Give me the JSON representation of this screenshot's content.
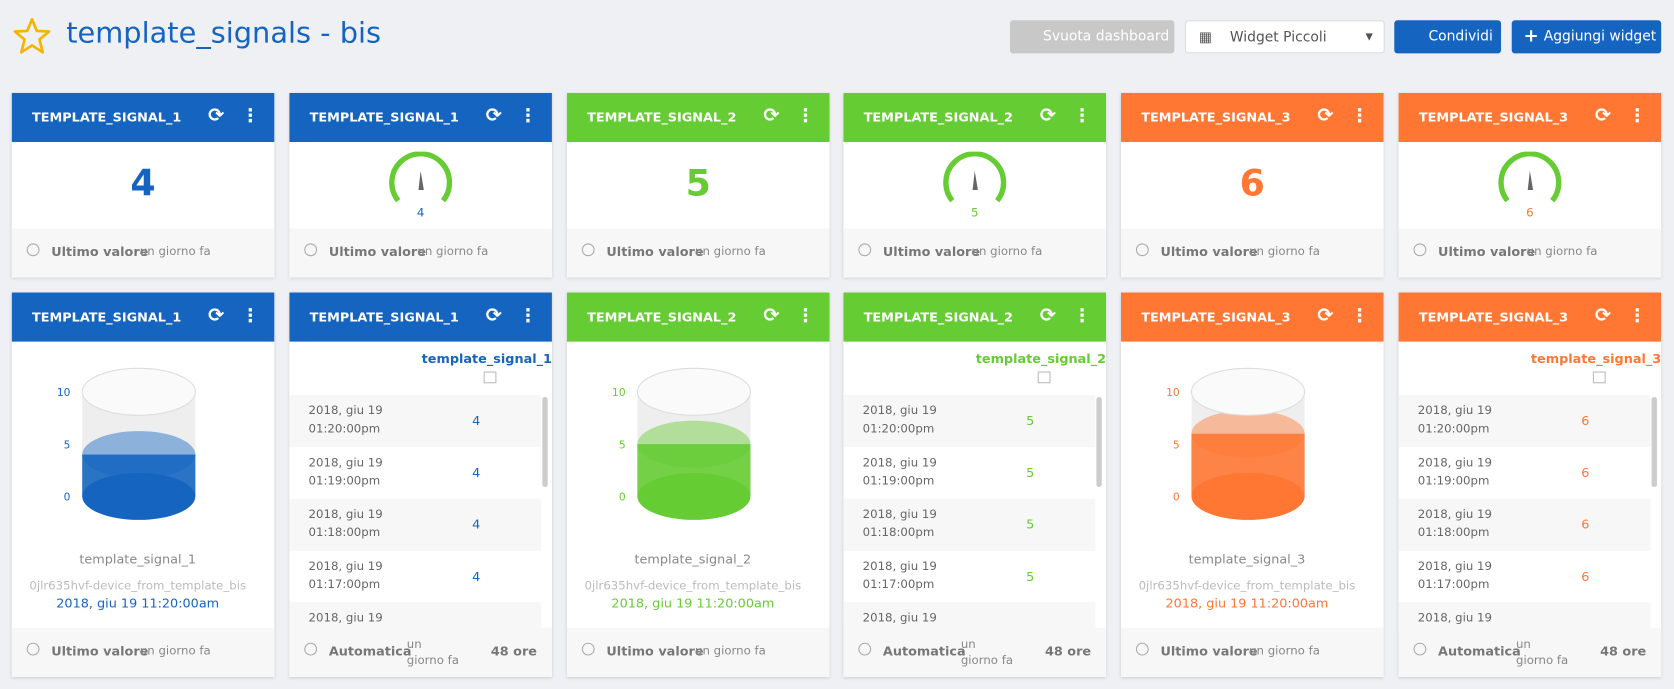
{
  "header": {
    "title": "template_signals - bis",
    "buttons": [
      "Svuota dashboard",
      "Widget Piccoli",
      "Condividi",
      "Aggiungi widget"
    ]
  },
  "widgets": [
    {
      "title": "TEMPLATE_SIGNAL_1",
      "color": "#1565c0",
      "kind": "value",
      "value": 4,
      "footer": [
        "Ultimo valore",
        "un giorno fa"
      ]
    },
    {
      "title": "TEMPLATE_SIGNAL_1",
      "color": "#1565c0",
      "kind": "gauge",
      "value": 4,
      "footer": [
        "Ultimo valore",
        "un giorno fa"
      ]
    },
    {
      "title": "TEMPLATE_SIGNAL_2",
      "color": "#66cc33",
      "kind": "value",
      "value": 5,
      "footer": [
        "Ultimo valore",
        "un giorno fa"
      ]
    },
    {
      "title": "TEMPLATE_SIGNAL_2",
      "color": "#66cc33",
      "kind": "gauge",
      "value": 5,
      "footer": [
        "Ultimo valore",
        "un giorno fa"
      ]
    },
    {
      "title": "TEMPLATE_SIGNAL_3",
      "color": "#ff7733",
      "kind": "value",
      "value": 6,
      "footer": [
        "Ultimo valore",
        "un giorno fa"
      ]
    },
    {
      "title": "TEMPLATE_SIGNAL_3",
      "color": "#ff7733",
      "kind": "gauge",
      "value": 6,
      "footer": [
        "Ultimo valore",
        "un giorno fa"
      ]
    },
    {
      "title": "TEMPLATE_SIGNAL_1",
      "color": "#1565c0",
      "kind": "tank",
      "ticks": [
        10,
        5,
        0
      ],
      "level": 4,
      "name": "template_signal_1",
      "device": "0jlr635hvf-device_from_template_bis",
      "time": "2018, giu 19 11:20:00am",
      "footer": [
        "Ultimo valore",
        "un giorno fa"
      ]
    },
    {
      "title": "TEMPLATE_SIGNAL_1",
      "color": "#1565c0",
      "kind": "table",
      "signal": "template_signal_1",
      "rows": [
        [
          "2018, giu 19",
          "01:20:00pm",
          4
        ],
        [
          "2018, giu 19",
          "01:19:00pm",
          4
        ],
        [
          "2018, giu 19",
          "01:18:00pm",
          4
        ],
        [
          "2018, giu 19",
          "01:17:00pm",
          4
        ],
        [
          "2018, giu 19"
        ]
      ],
      "footer": [
        "Automatica",
        "un giorno fa",
        "48 ore"
      ]
    },
    {
      "title": "TEMPLATE_SIGNAL_2",
      "color": "#66cc33",
      "kind": "tank",
      "ticks": [
        10,
        5,
        0
      ],
      "level": 5,
      "name": "template_signal_2",
      "device": "0jlr635hvf-device_from_template_bis",
      "time": "2018, giu 19 11:20:00am",
      "footer": [
        "Ultimo valore",
        "un giorno fa"
      ]
    },
    {
      "title": "TEMPLATE_SIGNAL_2",
      "color": "#66cc33",
      "kind": "table",
      "signal": "template_signal_2",
      "rows": [
        [
          "2018, giu 19",
          "01:20:00pm",
          5
        ],
        [
          "2018, giu 19",
          "01:19:00pm",
          5
        ],
        [
          "2018, giu 19",
          "01:18:00pm",
          5
        ],
        [
          "2018, giu 19",
          "01:17:00pm",
          5
        ],
        [
          "2018, giu 19"
        ]
      ],
      "footer": [
        "Automatica",
        "un giorno fa",
        "48 ore"
      ]
    },
    {
      "title": "TEMPLATE_SIGNAL_3",
      "color": "#ff7733",
      "kind": "tank",
      "ticks": [
        10,
        5,
        0
      ],
      "level": 6,
      "name": "template_signal_3",
      "device": "0jlr635hvf-device_from_template_bis",
      "time": "2018, giu 19 11:20:00am",
      "footer": [
        "Ultimo valore",
        "un giorno fa"
      ]
    },
    {
      "title": "TEMPLATE_SIGNAL_3",
      "color": "#ff7733",
      "kind": "table",
      "signal": "template_signal_3",
      "rows": [
        [
          "2018, giu 19",
          "01:20:00pm",
          6
        ],
        [
          "2018, giu 19",
          "01:19:00pm",
          6
        ],
        [
          "2018, giu 19",
          "01:18:00pm",
          6
        ],
        [
          "2018, giu 19",
          "01:17:00pm",
          6
        ],
        [
          "2018, giu 19"
        ]
      ],
      "footer": [
        "Automatica",
        "un giorno fa",
        "48 ore"
      ]
    }
  ]
}
